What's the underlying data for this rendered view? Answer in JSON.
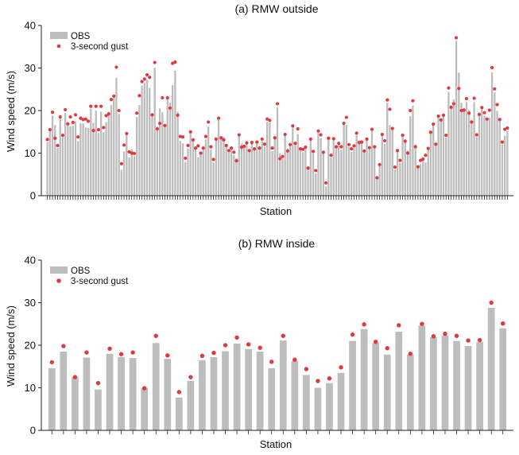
{
  "colors": {
    "bar": "#bdbdbd",
    "gust": "#e0393e",
    "axis": "#222222"
  },
  "chart_data": [
    {
      "type": "bar",
      "title": "(a) RMW outside",
      "xlabel": "Station",
      "ylabel": "Wind speed (m/s)",
      "ylim": [
        0,
        40
      ],
      "yticks": [
        "0",
        "10",
        "20",
        "30",
        "40"
      ],
      "legend": {
        "placement": "top-left",
        "entries": [
          "OBS",
          "3-second gust"
        ]
      },
      "series": [
        {
          "name": "OBS",
          "kind": "bar",
          "values": [
            12.6,
            15.2,
            18.8,
            16.6,
            11.2,
            18.4,
            14.5,
            19.4,
            16.7,
            16.3,
            16.4,
            17.5,
            12.8,
            17.0,
            17.0,
            16.0,
            15.9,
            20.4,
            17.1,
            20.0,
            14.8,
            19.7,
            14.9,
            17.3,
            19.7,
            21.3,
            23.1,
            27.7,
            19.2,
            6.1,
            10.4,
            14.2,
            9.0,
            10.9,
            9.3,
            18.5,
            21.3,
            25.8,
            26.5,
            27.3,
            25.3,
            18.7,
            30.1,
            16.2,
            20.5,
            19.6,
            16.5,
            22.9,
            21.9,
            26.0,
            29.4,
            19.7,
            12.9,
            12.3,
            7.9,
            11.1,
            14.6,
            13.5,
            11.3,
            9.0,
            9.8,
            11.1,
            13.2,
            16.2,
            10.9,
            7.8,
            13.3,
            17.8,
            13.7,
            13.8,
            11.8,
            10.2,
            11.4,
            9.6,
            8.8,
            14.2,
            12.2,
            11.4,
            12.2,
            10.3,
            12.6,
            10.8,
            12.7,
            11.0,
            12.8,
            11.5,
            17.3,
            17.2,
            10.5,
            13.6,
            20.8,
            10.0,
            8.7,
            14.1,
            11.1,
            12.1,
            16.0,
            12.7,
            14.5,
            11.3,
            10.2,
            11.7,
            6.2,
            13.5,
            9.9,
            5.2,
            14.8,
            13.5,
            10.6,
            2.2,
            13.5,
            9.0,
            13.6,
            11.6,
            12.2,
            10.8,
            16.9,
            16.6,
            11.4,
            10.3,
            11.2,
            14.2,
            12.4,
            12.5,
            10.2,
            13.1,
            11.0,
            15.6,
            11.4,
            3.8,
            7.5,
            14.2,
            12.2,
            21.8,
            16.6,
            15.4,
            6.1,
            10.6,
            7.7,
            14.1,
            13.3,
            10.6,
            18.7,
            21.2,
            12.0,
            6.6,
            7.4,
            9.0,
            7.8,
            10.7,
            14.9,
            16.6,
            12.0,
            18.7,
            17.5,
            19.0,
            13.7,
            24.4,
            20.5,
            22.6,
            36.4,
            28.9,
            21.8,
            20.6,
            22.0,
            20.1,
            17.8,
            22.0,
            13.8,
            19.0,
            20.7,
            18.8,
            17.8,
            18.3,
            29.0,
            24.3,
            19.9,
            17.7,
            12.0,
            14.1,
            15.2
          ]
        },
        {
          "name": "3-second gust",
          "kind": "marker",
          "values": [
            13.2,
            15.5,
            19.6,
            13.5,
            11.8,
            18.5,
            14.2,
            20.2,
            16.9,
            18.5,
            17.2,
            19.0,
            13.8,
            18.2,
            17.9,
            18.0,
            17.5,
            21.0,
            15.3,
            21.0,
            15.5,
            21.0,
            16.0,
            18.8,
            19.2,
            22.6,
            23.4,
            30.2,
            20.0,
            7.5,
            11.9,
            14.6,
            10.3,
            10.0,
            9.9,
            19.4,
            23.5,
            26.8,
            27.4,
            28.4,
            27.8,
            19.0,
            31.3,
            15.7,
            17.0,
            23.0,
            16.5,
            23.0,
            20.6,
            31.1,
            31.4,
            18.9,
            13.9,
            13.8,
            8.8,
            11.8,
            15.0,
            13.1,
            11.2,
            11.7,
            10.0,
            11.2,
            13.9,
            17.3,
            11.5,
            8.5,
            13.3,
            18.2,
            13.6,
            13.1,
            11.8,
            10.6,
            11.2,
            10.2,
            8.2,
            14.3,
            11.4,
            11.6,
            12.4,
            10.6,
            12.5,
            11.0,
            12.6,
            11.2,
            13.3,
            12.1,
            18.0,
            17.7,
            11.2,
            13.6,
            21.6,
            8.7,
            9.2,
            14.4,
            10.5,
            12.0,
            16.4,
            12.3,
            15.7,
            11.0,
            10.9,
            11.4,
            6.5,
            13.3,
            10.4,
            5.9,
            15.2,
            14.3,
            10.2,
            3.0,
            13.5,
            9.5,
            13.4,
            11.5,
            12.3,
            11.5,
            17.0,
            18.4,
            12.0,
            11.0,
            11.7,
            14.7,
            12.5,
            12.6,
            10.5,
            13.3,
            11.3,
            15.6,
            11.5,
            4.2,
            7.3,
            14.4,
            12.9,
            22.5,
            20.3,
            15.8,
            6.7,
            10.6,
            8.3,
            14.2,
            12.8,
            10.0,
            20.0,
            22.3,
            11.5,
            6.8,
            8.3,
            8.6,
            9.5,
            11.1,
            14.9,
            16.8,
            12.1,
            18.7,
            17.8,
            18.9,
            14.2,
            25.3,
            20.8,
            21.6,
            37.1,
            25.2,
            20.0,
            20.1,
            22.8,
            19.4,
            17.3,
            22.9,
            14.3,
            19.1,
            20.7,
            19.5,
            18.0,
            20.1,
            30.1,
            25.1,
            21.4,
            17.9,
            12.6,
            15.6,
            15.9
          ]
        }
      ]
    },
    {
      "type": "bar",
      "title": "(b) RMW inside",
      "xlabel": "Station",
      "ylabel": "Wind speed (m/s)",
      "ylim": [
        0,
        40
      ],
      "yticks": [
        "0",
        "10",
        "20",
        "30",
        "40"
      ],
      "legend": {
        "placement": "top-left",
        "entries": [
          "OBS",
          "3-second gust"
        ]
      },
      "series": [
        {
          "name": "OBS",
          "kind": "bar",
          "values": [
            14.6,
            18.5,
            12.5,
            17.1,
            9.6,
            18.0,
            17.2,
            17.0,
            9.9,
            20.5,
            16.8,
            7.7,
            11.6,
            16.5,
            17.2,
            18.6,
            20.4,
            19.1,
            18.5,
            14.6,
            21.1,
            16.3,
            13.0,
            10.0,
            11.1,
            13.5,
            21.0,
            23.8,
            20.5,
            17.8,
            23.2,
            17.8,
            24.6,
            21.9,
            22.3,
            21.0,
            19.8,
            20.8,
            28.8,
            24.0
          ]
        },
        {
          "name": "3-second gust",
          "kind": "marker",
          "values": [
            16.0,
            19.8,
            12.5,
            18.3,
            11.1,
            19.2,
            17.9,
            18.3,
            9.9,
            22.2,
            17.6,
            9.0,
            12.5,
            17.5,
            18.2,
            20.0,
            21.8,
            20.2,
            19.4,
            16.1,
            22.2,
            16.6,
            14.4,
            11.6,
            12.2,
            14.8,
            22.5,
            24.9,
            20.8,
            19.3,
            24.7,
            18.0,
            25.0,
            22.1,
            22.7,
            22.2,
            21.1,
            21.2,
            30.0,
            25.1
          ]
        }
      ]
    }
  ]
}
